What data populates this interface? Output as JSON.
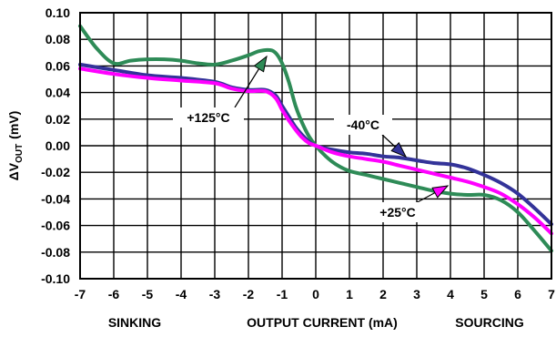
{
  "chart_data": {
    "type": "line",
    "xlabel": "OUTPUT CURRENT (mA)",
    "ylabel_main": "ΔV",
    "ylabel_sub": "OUT",
    "ylabel_unit": "(mV)",
    "left_label": "SINKING",
    "right_label": "SOURCING",
    "xlim": [
      -7,
      7
    ],
    "ylim": [
      -0.1,
      0.1
    ],
    "xticks": [
      "-7",
      "-6",
      "-5",
      "-4",
      "-3",
      "-2",
      "-1",
      "0",
      "1",
      "2",
      "3",
      "4",
      "5",
      "6",
      "7"
    ],
    "yticks": [
      "0.10",
      "0.08",
      "0.06",
      "0.04",
      "0.02",
      "0.00",
      "-0.02",
      "-0.04",
      "-0.06",
      "-0.08",
      "-0.10"
    ],
    "grid": true,
    "series": [
      {
        "name": "+125°C",
        "color": "#2e8b57",
        "x": [
          -7,
          -6.5,
          -6,
          -5.5,
          -5,
          -4.5,
          -4,
          -3.5,
          -3,
          -2.5,
          -2,
          -1.7,
          -1.4,
          -1.2,
          -1,
          -0.8,
          -0.6,
          -0.4,
          -0.2,
          0,
          0.3,
          0.6,
          1,
          1.5,
          2,
          2.5,
          3,
          3.5,
          4,
          4.5,
          5,
          5.5,
          6,
          6.5,
          7
        ],
        "y": [
          0.09,
          0.073,
          0.062,
          0.064,
          0.065,
          0.065,
          0.064,
          0.062,
          0.061,
          0.064,
          0.068,
          0.071,
          0.072,
          0.07,
          0.062,
          0.048,
          0.03,
          0.017,
          0.007,
          0.0,
          -0.008,
          -0.014,
          -0.019,
          -0.022,
          -0.025,
          -0.028,
          -0.031,
          -0.034,
          -0.036,
          -0.037,
          -0.037,
          -0.041,
          -0.05,
          -0.064,
          -0.079
        ]
      },
      {
        "name": "-40°C",
        "color": "#333399",
        "x": [
          -7,
          -6,
          -5,
          -4,
          -3,
          -2.5,
          -2,
          -1.5,
          -1.2,
          -1,
          -0.8,
          -0.6,
          -0.4,
          -0.2,
          0,
          0.5,
          1,
          1.5,
          2,
          2.5,
          3,
          3.5,
          4,
          4.5,
          5,
          5.5,
          6,
          6.5,
          7
        ],
        "y": [
          0.061,
          0.057,
          0.053,
          0.051,
          0.048,
          0.044,
          0.042,
          0.042,
          0.038,
          0.03,
          0.022,
          0.014,
          0.008,
          0.003,
          0.0,
          -0.003,
          -0.005,
          -0.006,
          -0.008,
          -0.009,
          -0.011,
          -0.013,
          -0.014,
          -0.017,
          -0.022,
          -0.028,
          -0.036,
          -0.047,
          -0.059
        ]
      },
      {
        "name": "+25°C",
        "color": "#ff00ff",
        "x": [
          -7,
          -6,
          -5,
          -4,
          -3,
          -2.5,
          -2,
          -1.5,
          -1.2,
          -1,
          -0.8,
          -0.6,
          -0.4,
          -0.2,
          0,
          0.5,
          1,
          1.5,
          2,
          2.5,
          3,
          3.5,
          4,
          4.5,
          5,
          5.5,
          6,
          6.5,
          7
        ],
        "y": [
          0.058,
          0.054,
          0.051,
          0.049,
          0.047,
          0.043,
          0.041,
          0.041,
          0.036,
          0.027,
          0.019,
          0.012,
          0.006,
          0.002,
          0.0,
          -0.005,
          -0.008,
          -0.01,
          -0.012,
          -0.015,
          -0.018,
          -0.021,
          -0.024,
          -0.027,
          -0.031,
          -0.036,
          -0.044,
          -0.054,
          -0.066
        ]
      }
    ],
    "annotations": [
      {
        "text": "+125°C",
        "series": "+125°C"
      },
      {
        "text": "-40°C",
        "series": "-40°C"
      },
      {
        "text": "+25°C",
        "series": "+25°C"
      }
    ]
  }
}
